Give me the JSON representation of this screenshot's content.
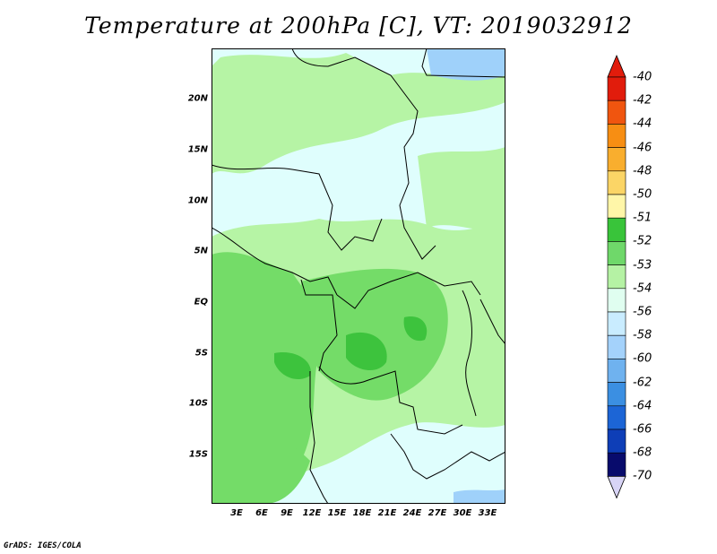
{
  "title": "Temperature at 200hPa [C], VT: 2019032912",
  "credit": "GrADS: IGES/COLA",
  "lat_labels": [
    "20N",
    "15N",
    "10N",
    "5N",
    "EQ",
    "5S",
    "10S",
    "15S"
  ],
  "lon_labels": [
    "3E",
    "6E",
    "9E",
    "12E",
    "15E",
    "18E",
    "21E",
    "24E",
    "27E",
    "30E",
    "33E"
  ],
  "colorbar": {
    "labels": [
      "-40",
      "-42",
      "-44",
      "-46",
      "-48",
      "-50",
      "-51",
      "-52",
      "-53",
      "-54",
      "-56",
      "-58",
      "-60",
      "-62",
      "-64",
      "-66",
      "-68",
      "-70"
    ],
    "colors": [
      "#e11c0c",
      "#f0550f",
      "#f78e13",
      "#f9ae2e",
      "#fbd566",
      "#fff6a8",
      "#39c43a",
      "#6fd86a",
      "#b5f2a4",
      "#e0fef0",
      "#c9ecff",
      "#a4d2fb",
      "#6fb2ef",
      "#3b8fe2",
      "#1c65d6",
      "#0e3eb7",
      "#080b6c"
    ],
    "top_arrow_color": "#e11c0c",
    "bottom_arrow_color": "#d8d4f6"
  },
  "map_colors": {
    "lt54": "#dffefd",
    "m53": "#b6f4a5",
    "m52": "#74dc68",
    "m51": "#3dc33d",
    "m56": "#9fd1fa",
    "m58": "#9fd1fa",
    "border": "#000000"
  }
}
